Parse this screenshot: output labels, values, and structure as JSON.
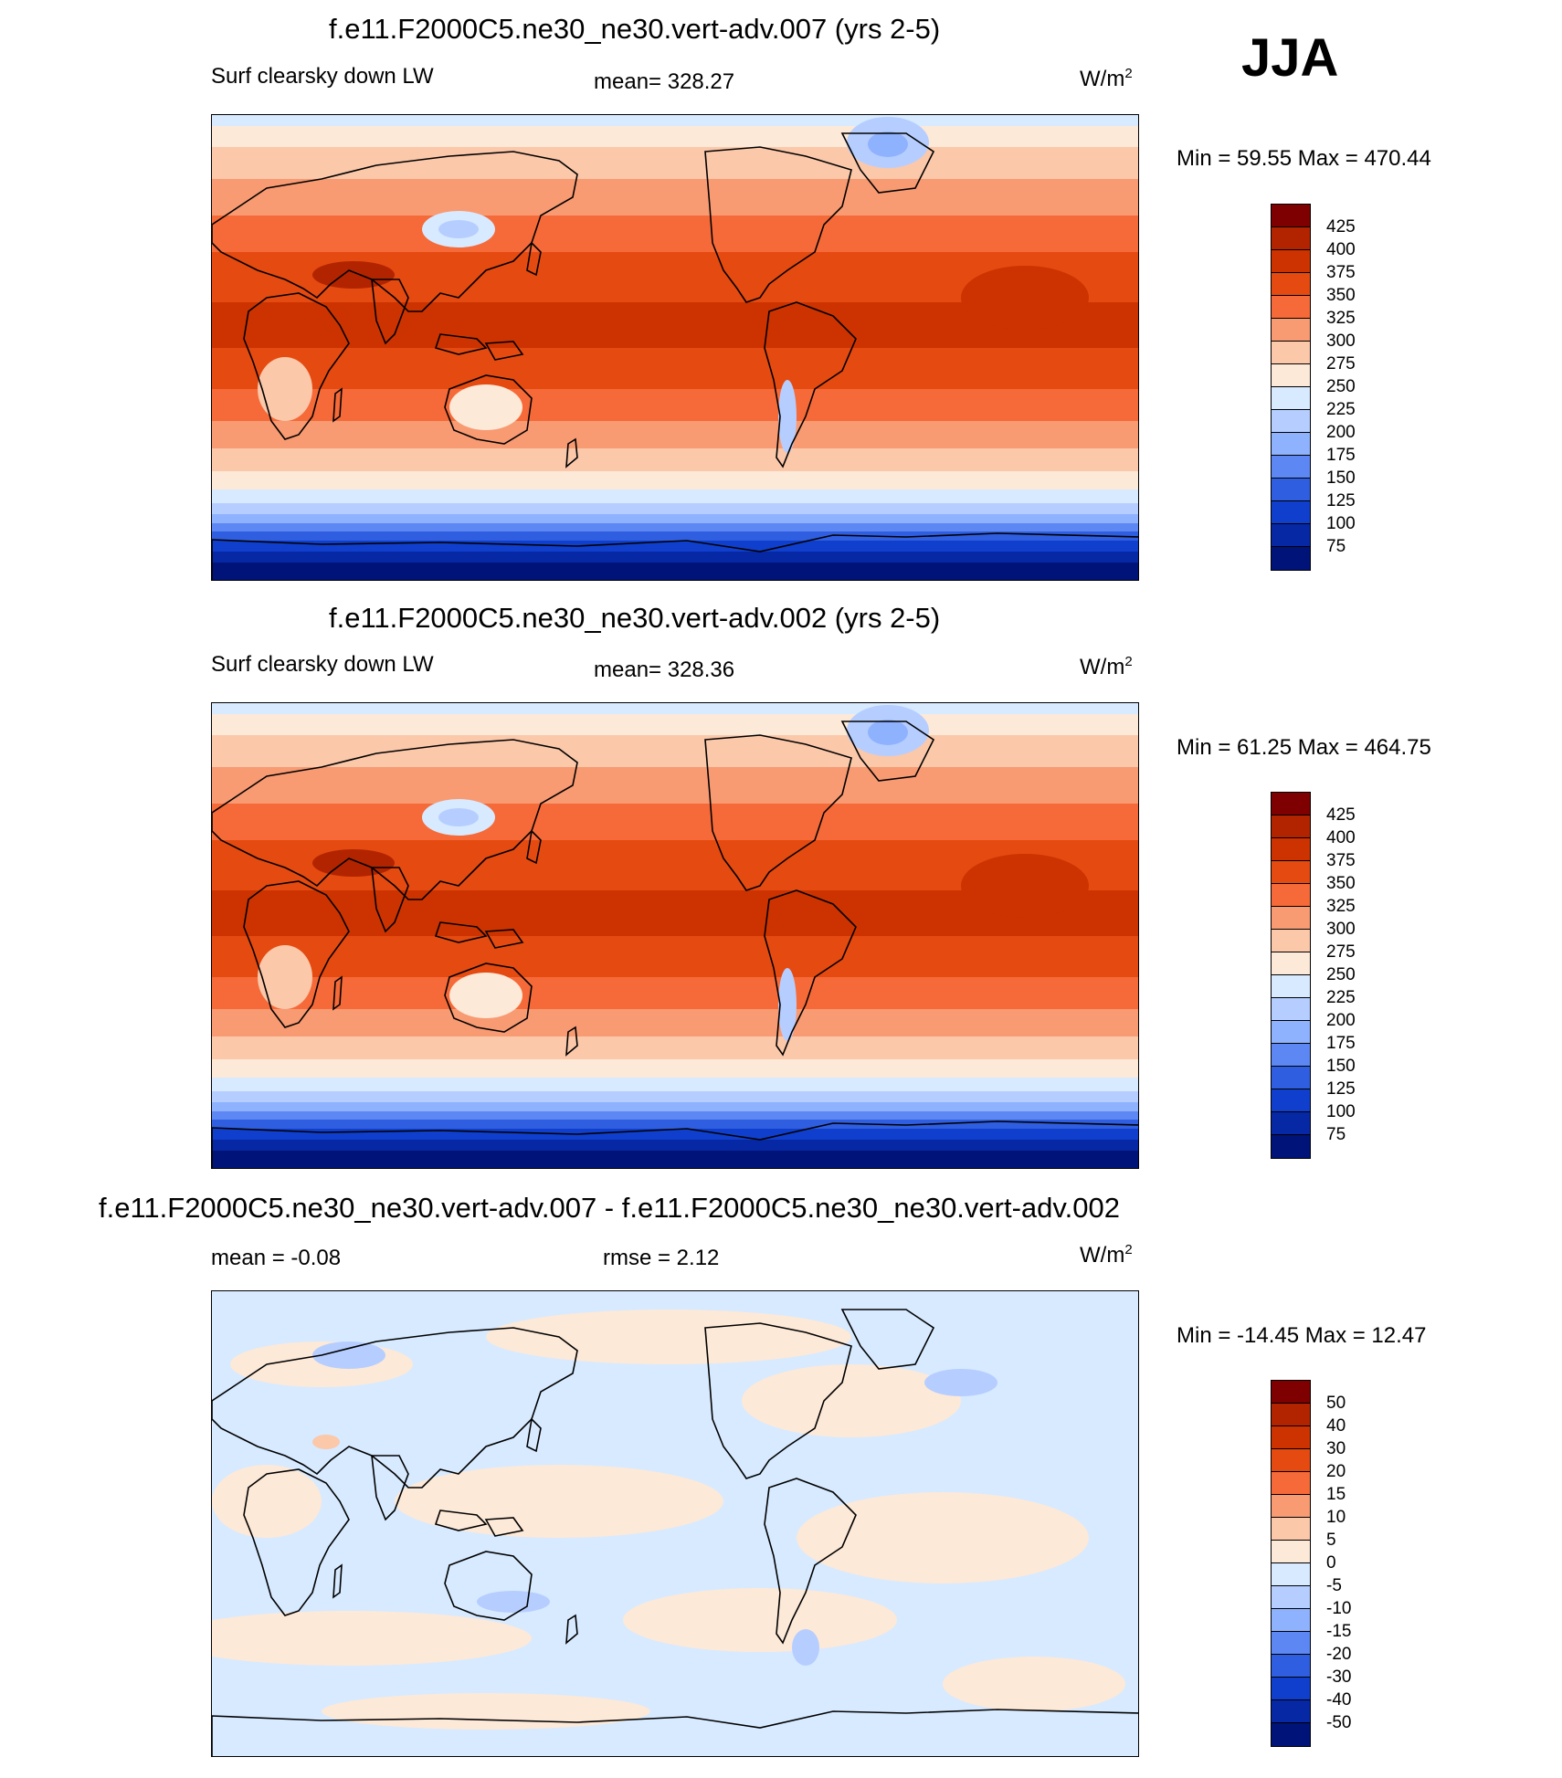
{
  "season": "JJA",
  "panels": [
    {
      "id": "p1",
      "title": "f.e11.F2000C5.ne30_ne30.vert-adv.007 (yrs 2-5)",
      "left_label": "Surf clearsky down LW",
      "center_label": "mean= 328.27",
      "units_base": "W/m",
      "units_exp": "2",
      "minmax": "Min =  59.55 Max = 470.44",
      "colorbar": {
        "colors": [
          "#7f0000",
          "#b22400",
          "#cc3300",
          "#e54a10",
          "#f56a38",
          "#f89a72",
          "#fbc8aa",
          "#fde9d8",
          "#d7eaff",
          "#b6ceff",
          "#8fb2ff",
          "#5d87f3",
          "#2f5ee0",
          "#0f3fcc",
          "#0628a4",
          "#001378"
        ],
        "labels": [
          "425",
          "400",
          "375",
          "350",
          "325",
          "300",
          "275",
          "250",
          "225",
          "200",
          "175",
          "150",
          "125",
          "100",
          "75"
        ]
      },
      "field": "abs"
    },
    {
      "id": "p2",
      "title": "f.e11.F2000C5.ne30_ne30.vert-adv.002 (yrs 2-5)",
      "left_label": "Surf clearsky down LW",
      "center_label": "mean= 328.36",
      "units_base": "W/m",
      "units_exp": "2",
      "minmax": "Min =  61.25 Max = 464.75",
      "colorbar": {
        "colors": [
          "#7f0000",
          "#b22400",
          "#cc3300",
          "#e54a10",
          "#f56a38",
          "#f89a72",
          "#fbc8aa",
          "#fde9d8",
          "#d7eaff",
          "#b6ceff",
          "#8fb2ff",
          "#5d87f3",
          "#2f5ee0",
          "#0f3fcc",
          "#0628a4",
          "#001378"
        ],
        "labels": [
          "425",
          "400",
          "375",
          "350",
          "325",
          "300",
          "275",
          "250",
          "225",
          "200",
          "175",
          "150",
          "125",
          "100",
          "75"
        ]
      },
      "field": "abs"
    },
    {
      "id": "p3",
      "title": "f.e11.F2000C5.ne30_ne30.vert-adv.007 - f.e11.F2000C5.ne30_ne30.vert-adv.002",
      "left_label": "mean =  -0.08",
      "center_label": "rmse =   2.12",
      "units_base": "W/m",
      "units_exp": "2",
      "minmax": "Min = -14.45 Max =  12.47",
      "colorbar": {
        "colors": [
          "#7f0000",
          "#b22400",
          "#cc3300",
          "#e54a10",
          "#f56a38",
          "#f89a72",
          "#fbc8aa",
          "#fde9d8",
          "#d7eaff",
          "#b6ceff",
          "#8fb2ff",
          "#5d87f3",
          "#2f5ee0",
          "#0f3fcc",
          "#0628a4",
          "#001378"
        ],
        "labels": [
          "50",
          "40",
          "30",
          "20",
          "15",
          "10",
          "5",
          "0",
          "-5",
          "-10",
          "-15",
          "-20",
          "-30",
          "-40",
          "-50"
        ]
      },
      "field": "diff"
    }
  ]
}
